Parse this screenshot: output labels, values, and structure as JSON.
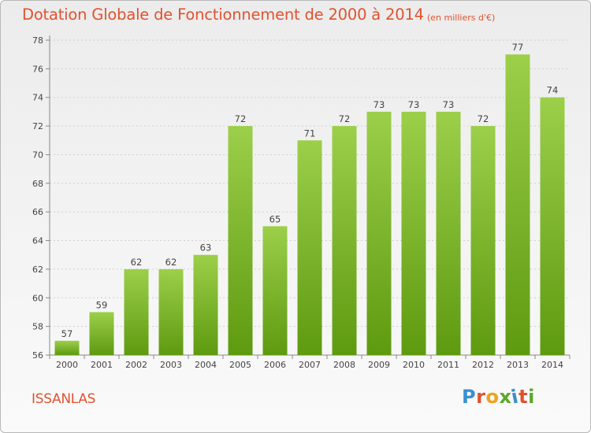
{
  "header": {
    "title": "Dotation Globale de Fonctionnement de 2000 à 2014",
    "subtitle": "(en milliers d'€)"
  },
  "commune": "ISSANLAS",
  "logo": {
    "text": "Proxiti",
    "colors": [
      "#3a8fd0",
      "#e0522f",
      "#f0a020",
      "#5aa82a",
      "#3a8fd0",
      "#e0522f",
      "#5aa82a"
    ]
  },
  "chart_data": {
    "type": "bar",
    "categories": [
      "2000",
      "2001",
      "2002",
      "2003",
      "2004",
      "2005",
      "2006",
      "2007",
      "2008",
      "2009",
      "2010",
      "2011",
      "2012",
      "2013",
      "2014"
    ],
    "values": [
      57,
      59,
      62,
      62,
      63,
      72,
      65,
      71,
      72,
      73,
      73,
      73,
      72,
      77,
      74
    ],
    "ylim": [
      56,
      78
    ],
    "yticks": [
      56,
      58,
      60,
      62,
      64,
      66,
      68,
      70,
      72,
      74,
      76,
      78
    ],
    "grid": true,
    "bar_color_top": "#9ccf4a",
    "bar_color_bottom": "#5e9a10",
    "axis_color": "#888888",
    "label_color": "#444444"
  }
}
